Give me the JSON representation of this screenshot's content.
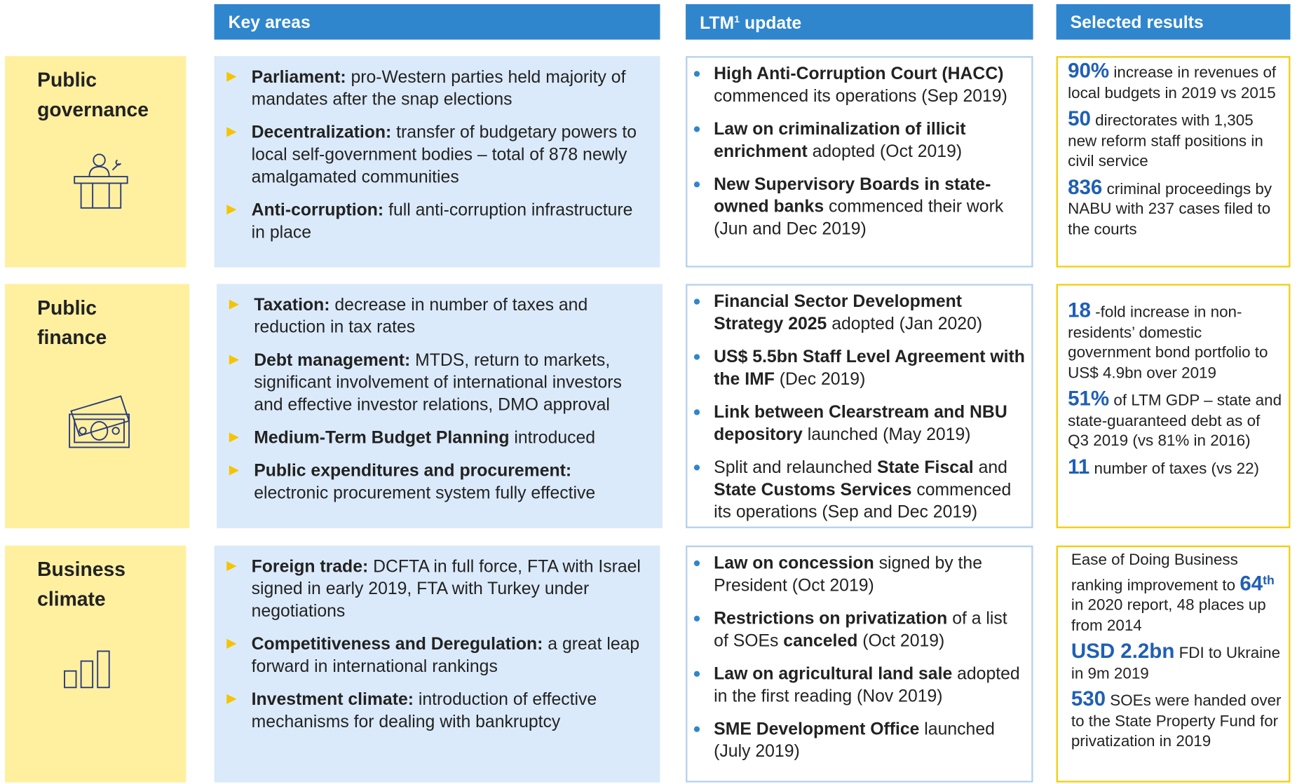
{
  "headers": {
    "key_areas": [
      {
        "text": "Key areas"
      }
    ],
    "ltm": [
      {
        "text": "LTM"
      },
      {
        "text": "1",
        "style": "sup"
      },
      {
        "text": " update"
      }
    ],
    "results": [
      {
        "text": "Selected results"
      }
    ]
  },
  "rows": [
    {
      "label": "Public governance",
      "icon": "podium",
      "key_areas": [
        [
          {
            "text": "Parliament:",
            "style": "bold"
          },
          {
            "text": " pro-Western parties held majority of mandates after the snap elections"
          }
        ],
        [
          {
            "text": "Decentralization:",
            "style": "bold"
          },
          {
            "text": " transfer of budgetary powers to local self-government bodies – total of 878 newly amalgamated communities"
          }
        ],
        [
          {
            "text": "Anti-corruption:",
            "style": "bold"
          },
          {
            "text": " full anti-corruption infrastructure in place"
          }
        ]
      ],
      "ltm": [
        [
          {
            "text": "High Anti-Corruption Court (HACC)",
            "style": "bold"
          },
          {
            "text": " commenced its operations (Sep 2019)"
          }
        ],
        [
          {
            "text": "Law on criminalization of illicit enrichment",
            "style": "bold"
          },
          {
            "text": " adopted (Oct 2019)"
          }
        ],
        [
          {
            "text": "New Supervisory Boards in state-owned banks",
            "style": "bold"
          },
          {
            "text": " commenced their work (Jun and Dec 2019)"
          }
        ]
      ],
      "results": [
        [
          {
            "text": "90%",
            "style": "big"
          },
          {
            "text": " increase in revenues of local budgets in 2019 vs 2015"
          }
        ],
        [
          {
            "text": "50",
            "style": "big"
          },
          {
            "text": " directorates with 1,305 new reform staff positions in civil service"
          }
        ],
        [
          {
            "text": "836",
            "style": "big"
          },
          {
            "text": " criminal proceedings by NABU with 237 cases filed to the courts"
          }
        ]
      ]
    },
    {
      "label": "Public finance",
      "icon": "money",
      "key_areas": [
        [
          {
            "text": "Taxation:",
            "style": "bold"
          },
          {
            "text": " decrease in number of taxes and reduction in tax rates"
          }
        ],
        [
          {
            "text": "Debt management:",
            "style": "bold"
          },
          {
            "text": " MTDS, return to markets, significant involvement of international investors and effective investor relations, DMO approval"
          }
        ],
        [
          {
            "text": "Medium-Term Budget Planning",
            "style": "bold"
          },
          {
            "text": " introduced"
          }
        ],
        [
          {
            "text": "Public expenditures and procurement:",
            "style": "bold"
          },
          {
            "text": " electronic procurement system fully effective"
          }
        ]
      ],
      "ltm": [
        [
          {
            "text": "Financial Sector Development Strategy 2025",
            "style": "bold"
          },
          {
            "text": " adopted (Jan 2020)"
          }
        ],
        [
          {
            "text": "US$ 5.5bn Staff Level Agreement with the IMF",
            "style": "bold"
          },
          {
            "text": " (Dec 2019)"
          }
        ],
        [
          {
            "text": "Link between Clearstream and NBU depository",
            "style": "bold"
          },
          {
            "text": " launched (May 2019)"
          }
        ],
        [
          {
            "text": "Split and relaunched "
          },
          {
            "text": "State Fiscal",
            "style": "bold"
          },
          {
            "text": " and "
          },
          {
            "text": "State Customs Services",
            "style": "bold"
          },
          {
            "text": " commenced its operations (Sep and Dec 2019)"
          }
        ]
      ],
      "results": [
        [
          {
            "text": "18",
            "style": "big"
          },
          {
            "text": " -fold increase in non-residents’ domestic government bond portfolio to US$ 4.9bn over 2019"
          }
        ],
        [
          {
            "text": "51%",
            "style": "big"
          },
          {
            "text": " of LTM GDP – state and state-guaranteed debt as of Q3 2019 (vs 81% in 2016)"
          }
        ],
        [
          {
            "text": "11",
            "style": "big"
          },
          {
            "text": "  number of taxes (vs 22)"
          }
        ]
      ]
    },
    {
      "label": "Business climate",
      "icon": "bars",
      "key_areas": [
        [
          {
            "text": "Foreign trade:",
            "style": "bold"
          },
          {
            "text": " DCFTA in full force, FTA with Israel signed in early 2019, FTA with Turkey under negotiations"
          }
        ],
        [
          {
            "text": "Competitiveness and Deregulation:",
            "style": "bold"
          },
          {
            "text": " a great leap forward in international rankings"
          }
        ],
        [
          {
            "text": "Investment climate:",
            "style": "bold"
          },
          {
            "text": " introduction of effective mechanisms for dealing with bankruptcy"
          }
        ]
      ],
      "ltm": [
        [
          {
            "text": "Law on concession",
            "style": "bold"
          },
          {
            "text": " signed by the President (Oct 2019)"
          }
        ],
        [
          {
            "text": "Restrictions on privatization",
            "style": "bold"
          },
          {
            "text": " of a list of SOEs "
          },
          {
            "text": "canceled",
            "style": "bold"
          },
          {
            "text": " (Oct 2019)"
          }
        ],
        [
          {
            "text": "Law on agricultural land sale",
            "style": "bold"
          },
          {
            "text": " adopted in the first reading (Nov 2019)"
          }
        ],
        [
          {
            "text": "SME Development Office",
            "style": "bold"
          },
          {
            "text": " launched (July 2019)"
          }
        ]
      ],
      "results": [
        [
          {
            "text": "Ease of Doing Business ranking improvement to "
          },
          {
            "text": "64",
            "style": "big"
          },
          {
            "text": "th",
            "style": "sup-big"
          },
          {
            "text": " in 2020 report, 48 places up from 2014"
          }
        ],
        [
          {
            "text": "USD 2.2bn",
            "style": "big"
          },
          {
            "text": " FDI to Ukraine in 9m 2019"
          }
        ],
        [
          {
            "text": "530",
            "style": "big"
          },
          {
            "text": " SOEs were handed over to the State Property Fund for privatization in 2019"
          }
        ]
      ]
    }
  ]
}
